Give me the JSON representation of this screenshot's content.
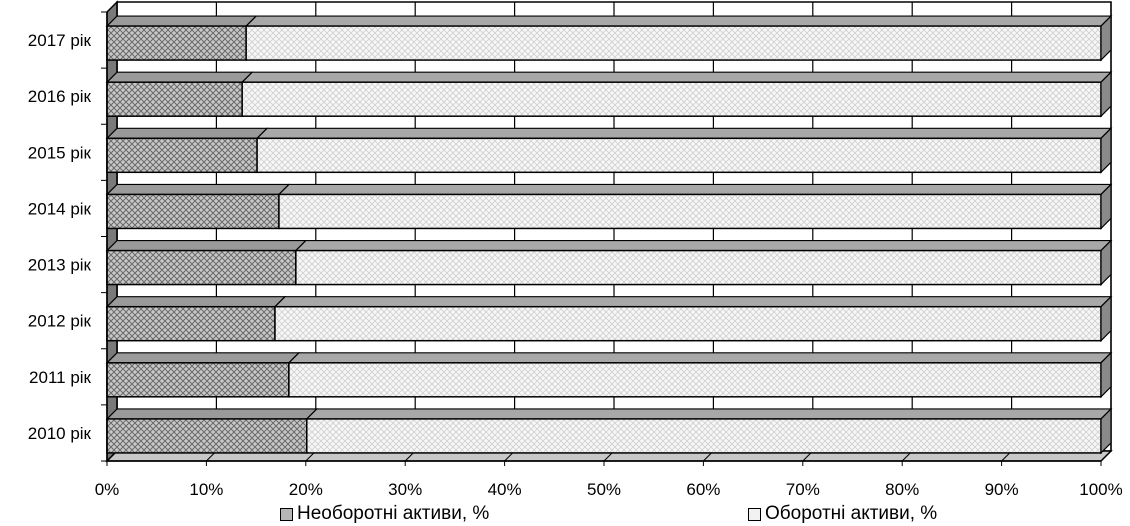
{
  "chart_data": {
    "type": "bar",
    "orientation": "horizontal",
    "stacked": "percent",
    "three_d": true,
    "categories": [
      "2010 рік",
      "2011 рік",
      "2012 рік",
      "2013 рік",
      "2014 рік",
      "2015 рік",
      "2016 рік",
      "2017 рік"
    ],
    "series": [
      {
        "name": "Необоротні активи, %",
        "values": [
          20.1,
          18.3,
          16.9,
          19.0,
          17.3,
          15.1,
          13.6,
          14.0
        ],
        "color": "#9a9a9a"
      },
      {
        "name": "Оборотні активи, %",
        "values": [
          79.9,
          81.7,
          83.1,
          81.0,
          82.7,
          84.9,
          86.4,
          86.0
        ],
        "color": "#f2f2f2"
      }
    ],
    "x_ticks": [
      "0%",
      "10%",
      "20%",
      "30%",
      "40%",
      "50%",
      "60%",
      "70%",
      "80%",
      "90%",
      "100%"
    ],
    "xlim": [
      0,
      100
    ],
    "grid": true,
    "legend_position": "bottom",
    "title": "",
    "xlabel": "",
    "ylabel": ""
  }
}
